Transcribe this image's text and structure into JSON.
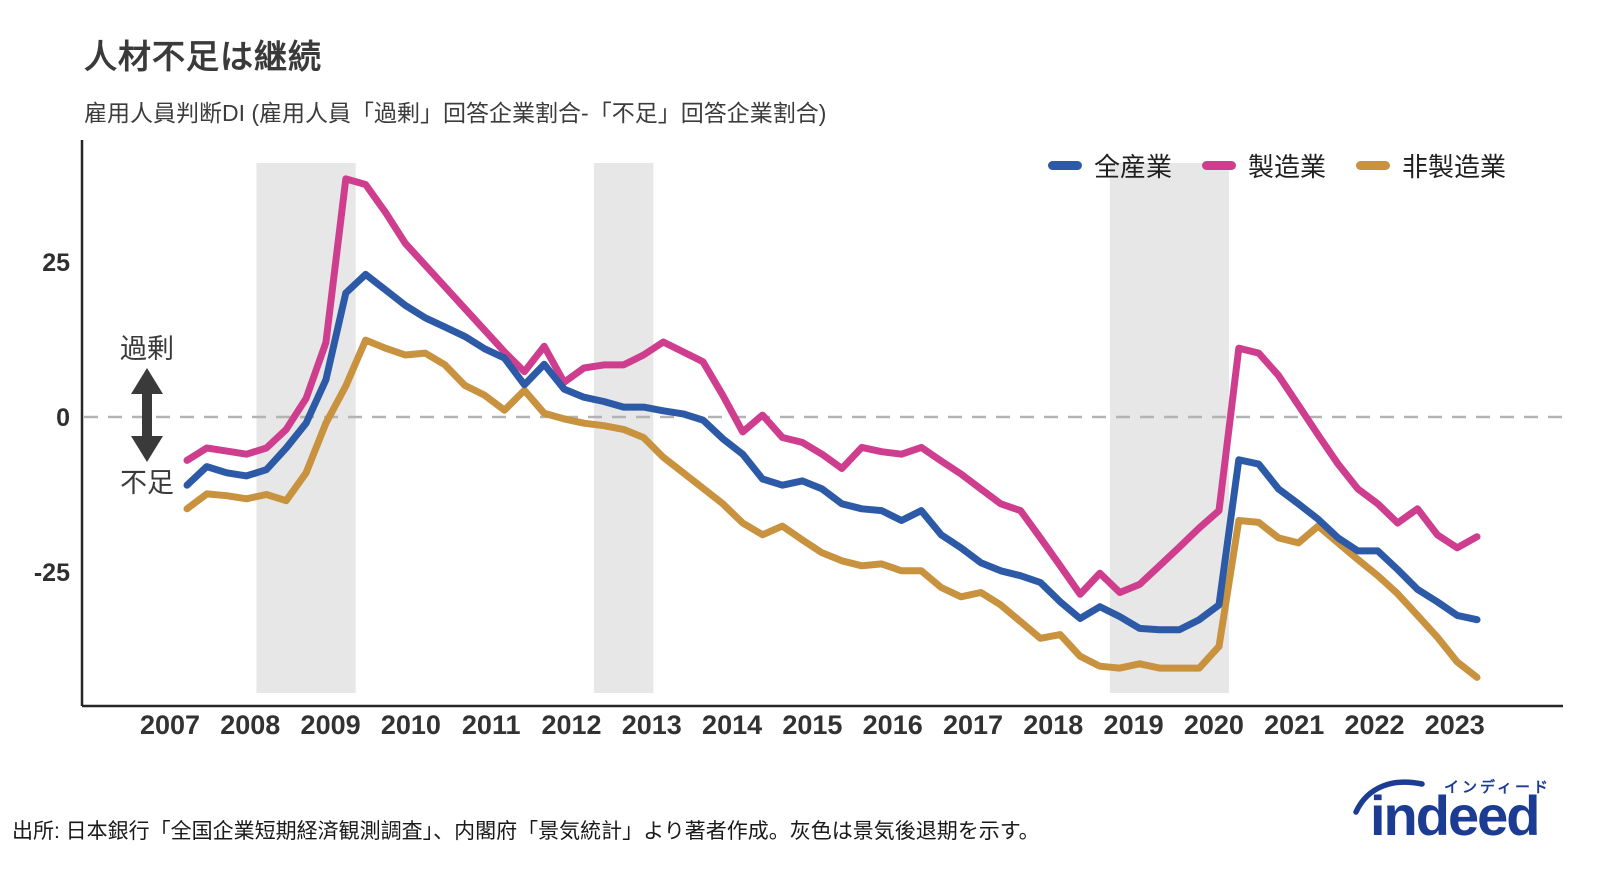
{
  "header": {
    "title": "人材不足は継続",
    "subtitle": "雇用人員判断DI (雇用人員「過剰」回答企業割合-「不足」回答企業割合)"
  },
  "source_note": "出所: 日本銀行「全国企業短期経済観測調査」、内閣府「景気統計」より著者作成。灰色は景気後退期を示す。",
  "logo": {
    "brand": "indeed",
    "brand_katakana": "インディード",
    "color": "#1c3c94"
  },
  "chart_data": {
    "type": "line",
    "frequency": "quarterly",
    "x_start": "2007Q1",
    "x_end": "2023Q2",
    "title": "人材不足は継続",
    "subtitle": "雇用人員判断DI (雇用人員「過剰」回答企業割合-「不足」回答企業割合)",
    "ylim": [
      -46,
      44
    ],
    "yticks": [
      25,
      0,
      -25
    ],
    "grid": false,
    "zero_line": {
      "style": "dashed",
      "color": "#b3b3b3"
    },
    "legend_position": "top-right",
    "year_labels": [
      "2007",
      "2008",
      "2009",
      "2010",
      "2011",
      "2012",
      "2013",
      "2014",
      "2015",
      "2016",
      "2017",
      "2018",
      "2019",
      "2020",
      "2021",
      "2022",
      "2023"
    ],
    "annotations": {
      "above_zero": "過剰",
      "below_zero": "不足",
      "color": "#3a3a3a"
    },
    "recession_bands": [
      {
        "from": "2008Q1",
        "to": "2009Q1"
      },
      {
        "from": "2012Q2",
        "to": "2012Q4"
      },
      {
        "from": "2018Q4",
        "to": "2020Q1"
      }
    ],
    "recession_band_color": "#e7e7e7",
    "series": [
      {
        "name": "全産業",
        "color": "#2d5aa6",
        "values": [
          -11,
          -8,
          -9,
          -9.5,
          -8.5,
          -5,
          -1,
          6,
          20,
          23,
          20.5,
          18,
          16,
          14.5,
          13,
          11,
          9.5,
          5.2,
          8.5,
          4.5,
          3.2,
          2.5,
          1.6,
          1.6,
          1,
          0.5,
          -0.5,
          -3.5,
          -6,
          -10,
          -11,
          -10.3,
          -11.6,
          -14,
          -14.8,
          -15.1,
          -16.7,
          -15.1,
          -19,
          -21.1,
          -23.5,
          -24.8,
          -25.6,
          -26.7,
          -29.8,
          -32.5,
          -30.6,
          -32.2,
          -34.1,
          -34.3,
          -34.3,
          -32.7,
          -30.3,
          -6.9,
          -7.6,
          -11.6,
          -14,
          -16.5,
          -19.5,
          -21.6,
          -21.6,
          -24.6,
          -27.8,
          -29.8,
          -32,
          -32.7
        ]
      },
      {
        "name": "製造業",
        "color": "#cf3e8e",
        "values": [
          -7,
          -5,
          -5.5,
          -6,
          -5,
          -2,
          3,
          12,
          38.4,
          37.5,
          33,
          28,
          24.5,
          21,
          17.5,
          14,
          10.5,
          7.3,
          11.4,
          5.6,
          7.9,
          8.4,
          8.4,
          10,
          12.1,
          10.5,
          8.9,
          3.5,
          -2.4,
          0.3,
          -3.3,
          -4.1,
          -6,
          -8.3,
          -4.9,
          -5.6,
          -6,
          -4.9,
          -7.1,
          -9.2,
          -11.6,
          -14,
          -15.1,
          -19.5,
          -24,
          -28.6,
          -25.2,
          -28.3,
          -27,
          -24,
          -21,
          -17.9,
          -15.1,
          11.1,
          10.3,
          6.7,
          1.9,
          -2.9,
          -7.6,
          -11.6,
          -14,
          -17.1,
          -14.8,
          -19,
          -21.1,
          -19.3
        ]
      },
      {
        "name": "非製造業",
        "color": "#c8923f",
        "values": [
          -14.8,
          -12.4,
          -12.7,
          -13.2,
          -12.5,
          -13.5,
          -9,
          -1,
          5,
          12.4,
          11.1,
          10,
          10.3,
          8.4,
          5.1,
          3.5,
          1.1,
          4.3,
          0.6,
          -0.3,
          -1,
          -1.4,
          -2,
          -3.3,
          -6.5,
          -9,
          -11.5,
          -14,
          -17.1,
          -19,
          -17.6,
          -19.8,
          -21.9,
          -23.2,
          -24,
          -23.7,
          -24.8,
          -24.8,
          -27.5,
          -29,
          -28.3,
          -30.3,
          -33,
          -35.7,
          -35.1,
          -38.6,
          -40.2,
          -40.5,
          -39.8,
          -40.5,
          -40.5,
          -40.5,
          -37,
          -16.7,
          -17,
          -19.5,
          -20.3,
          -17.6,
          -20.3,
          -23,
          -25.6,
          -28.5,
          -32,
          -35.5,
          -39.5,
          -42
        ]
      }
    ]
  }
}
